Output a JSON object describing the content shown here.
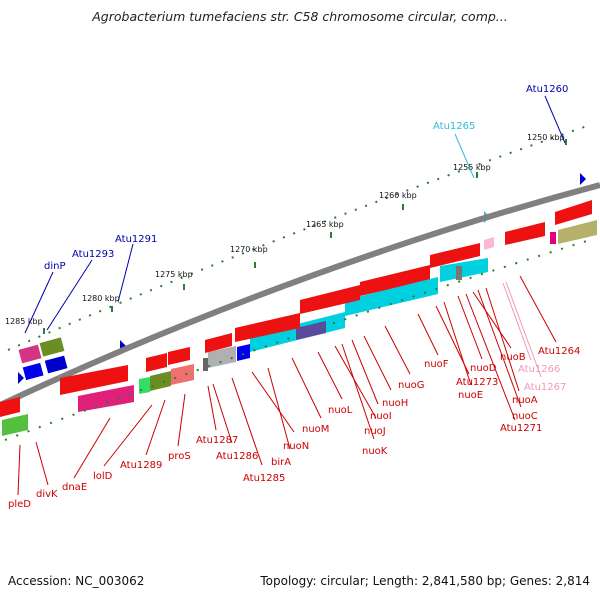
{
  "title": "Agrobacterium tumefaciens str. C58 chromosome circular, comp...",
  "footer": {
    "accession": "Accession: NC_003062",
    "summary": "Topology: circular; Length: 2,841,580 bp; Genes: 2,814"
  },
  "scale_labels": [
    "1250 kbp",
    "1255 kbp",
    "1260 kbp",
    "1265 kbp",
    "1270 kbp",
    "1275 kbp",
    "1280 kbp",
    "1285 kbp"
  ],
  "gene_labels_top": [
    "Atu1260",
    "Atu1265",
    "dinP",
    "Atu1293",
    "Atu1291"
  ],
  "gene_labels_bottom": [
    "pleD",
    "divK",
    "dnaE",
    "lolD",
    "Atu1289",
    "proS",
    "Atu1287",
    "Atu1286",
    "Atu1285",
    "nuoN",
    "birA",
    "nuoM",
    "nuoL",
    "nuoJ",
    "nuoK",
    "nuoI",
    "nuoH",
    "nuoG",
    "nuoF",
    "Atu1273",
    "nuoE",
    "nuoD",
    "nuoB",
    "Atu1266",
    "Atu1267",
    "nuoA",
    "nuoC",
    "Atu1271",
    "Atu1264"
  ],
  "colors": {
    "backbone": "#808080",
    "label_red": "#cc0000",
    "label_blue": "#0000aa",
    "label_cyan": "#33bbdd",
    "label_pink": "#ee99bb",
    "tick_green": "#2e7d32"
  }
}
